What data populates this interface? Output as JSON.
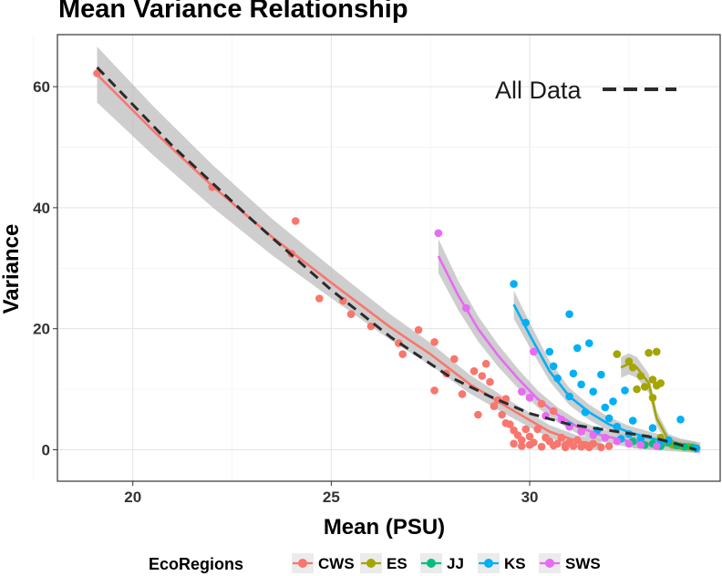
{
  "chart_data": {
    "type": "scatter",
    "title": "Mean Variance Relationship",
    "xlabel": "Mean (PSU)",
    "ylabel": "Variance",
    "xlim": [
      18.1,
      34.8
    ],
    "ylim": [
      -5.2,
      68.6
    ],
    "x_ticks": [
      20,
      25,
      30
    ],
    "y_ticks": [
      0,
      20,
      40,
      60
    ],
    "grid": true,
    "legend_title": "EcoRegions",
    "legend_position": "bottom",
    "annotation": "All Data",
    "series": [
      {
        "name": "CWS",
        "color": "#F8766D",
        "points": [
          [
            19.1,
            62.2
          ],
          [
            22.0,
            43.4
          ],
          [
            24.0,
            32.4
          ],
          [
            24.1,
            37.8
          ],
          [
            24.7,
            25.0
          ],
          [
            25.3,
            24.6
          ],
          [
            25.5,
            22.4
          ],
          [
            26.0,
            20.4
          ],
          [
            26.7,
            17.6
          ],
          [
            26.8,
            15.8
          ],
          [
            27.2,
            19.8
          ],
          [
            27.6,
            17.8
          ],
          [
            27.6,
            9.8
          ],
          [
            27.9,
            12.6
          ],
          [
            28.1,
            15.0
          ],
          [
            28.3,
            9.2
          ],
          [
            28.6,
            13.0
          ],
          [
            28.7,
            5.8
          ],
          [
            28.8,
            12.2
          ],
          [
            28.9,
            14.2
          ],
          [
            29.0,
            11.2
          ],
          [
            29.1,
            7.2
          ],
          [
            29.2,
            8.2
          ],
          [
            29.3,
            5.8
          ],
          [
            29.4,
            4.4
          ],
          [
            29.4,
            8.4
          ],
          [
            29.5,
            4.2
          ],
          [
            29.6,
            3.2
          ],
          [
            29.7,
            2.4
          ],
          [
            29.8,
            1.6
          ],
          [
            29.9,
            3.4
          ],
          [
            30.0,
            2.2
          ],
          [
            30.1,
            1.2
          ],
          [
            30.2,
            3.4
          ],
          [
            30.3,
            7.6
          ],
          [
            30.4,
            2.0
          ],
          [
            30.5,
            1.4
          ],
          [
            30.6,
            6.4
          ],
          [
            30.7,
            1.0
          ],
          [
            30.8,
            2.0
          ],
          [
            30.9,
            0.8
          ],
          [
            31.0,
            1.2
          ],
          [
            31.1,
            0.6
          ],
          [
            31.2,
            1.6
          ],
          [
            31.4,
            0.8
          ],
          [
            31.5,
            0.4
          ],
          [
            31.6,
            1.0
          ],
          [
            31.8,
            0.4
          ],
          [
            32.0,
            0.6
          ],
          [
            29.6,
            1.0
          ],
          [
            29.8,
            0.6
          ],
          [
            30.0,
            0.8
          ],
          [
            30.3,
            0.5
          ],
          [
            30.6,
            0.7
          ],
          [
            30.9,
            0.4
          ],
          [
            31.3,
            0.5
          ]
        ],
        "fit": [
          [
            19.1,
            62.0
          ],
          [
            20.5,
            52.8
          ],
          [
            22.0,
            43.6
          ],
          [
            23.5,
            35.2
          ],
          [
            25.0,
            27.6
          ],
          [
            26.5,
            20.2
          ],
          [
            27.5,
            15.8
          ],
          [
            28.5,
            10.8
          ],
          [
            29.5,
            6.8
          ],
          [
            30.5,
            3.0
          ],
          [
            31.2,
            1.4
          ],
          [
            31.8,
            0.8
          ]
        ]
      },
      {
        "name": "ES",
        "color": "#A3A500",
        "points": [
          [
            32.2,
            15.8
          ],
          [
            32.5,
            14.6
          ],
          [
            32.6,
            13.6
          ],
          [
            32.8,
            12.2
          ],
          [
            32.9,
            10.4
          ],
          [
            32.7,
            10.0
          ],
          [
            33.1,
            8.6
          ],
          [
            33.0,
            16.0
          ],
          [
            33.1,
            11.6
          ],
          [
            33.2,
            10.6
          ],
          [
            33.2,
            16.2
          ],
          [
            33.3,
            11.0
          ],
          [
            33.3,
            2.0
          ],
          [
            33.4,
            1.2
          ],
          [
            33.6,
            0.8
          ],
          [
            33.8,
            0.6
          ],
          [
            34.0,
            0.5
          ],
          [
            34.2,
            0.3
          ]
        ],
        "fit": [
          [
            32.3,
            13.6
          ],
          [
            32.5,
            14.2
          ],
          [
            32.7,
            13.6
          ],
          [
            33.0,
            11.0
          ],
          [
            33.2,
            5.2
          ],
          [
            33.5,
            1.6
          ],
          [
            33.8,
            0.9
          ],
          [
            34.2,
            0.4
          ]
        ]
      },
      {
        "name": "JJ",
        "color": "#00BF7D",
        "points": [
          [
            32.6,
            1.4
          ],
          [
            32.9,
            0.8
          ],
          [
            33.1,
            1.0
          ],
          [
            33.3,
            0.6
          ],
          [
            33.5,
            1.2
          ],
          [
            33.7,
            0.7
          ],
          [
            33.9,
            0.5
          ],
          [
            34.1,
            0.4
          ]
        ],
        "fit": [
          [
            32.6,
            1.2
          ],
          [
            33.4,
            0.8
          ],
          [
            34.2,
            0.4
          ]
        ]
      },
      {
        "name": "KS",
        "color": "#00B0F6",
        "points": [
          [
            29.6,
            27.4
          ],
          [
            29.9,
            21.0
          ],
          [
            30.5,
            16.2
          ],
          [
            30.6,
            13.8
          ],
          [
            30.7,
            11.8
          ],
          [
            31.0,
            22.4
          ],
          [
            31.0,
            8.8
          ],
          [
            31.1,
            12.6
          ],
          [
            31.2,
            16.8
          ],
          [
            31.3,
            10.8
          ],
          [
            31.4,
            6.2
          ],
          [
            31.5,
            17.6
          ],
          [
            31.6,
            9.6
          ],
          [
            31.8,
            12.4
          ],
          [
            31.9,
            7.0
          ],
          [
            32.0,
            5.2
          ],
          [
            32.1,
            8.0
          ],
          [
            32.2,
            3.8
          ],
          [
            32.4,
            9.8
          ],
          [
            32.5,
            2.6
          ],
          [
            32.6,
            4.8
          ],
          [
            32.8,
            1.8
          ],
          [
            33.1,
            3.6
          ],
          [
            33.3,
            1.2
          ],
          [
            33.5,
            1.6
          ],
          [
            33.8,
            5.0
          ],
          [
            34.2,
            0.2
          ],
          [
            31.0,
            4.0
          ],
          [
            31.7,
            3.2
          ],
          [
            32.3,
            1.8
          ]
        ],
        "fit": [
          [
            29.6,
            24.0
          ],
          [
            30.0,
            19.0
          ],
          [
            30.5,
            13.0
          ],
          [
            31.0,
            8.8
          ],
          [
            31.5,
            6.2
          ],
          [
            32.0,
            4.2
          ],
          [
            32.5,
            2.9
          ],
          [
            33.0,
            2.0
          ],
          [
            33.5,
            1.2
          ],
          [
            34.0,
            0.6
          ],
          [
            34.3,
            0.3
          ]
        ]
      },
      {
        "name": "SWS",
        "color": "#E76BF3",
        "points": [
          [
            27.7,
            35.8
          ],
          [
            28.4,
            23.4
          ],
          [
            29.8,
            9.6
          ],
          [
            30.0,
            8.6
          ],
          [
            30.1,
            16.2
          ],
          [
            30.4,
            5.6
          ],
          [
            30.8,
            5.0
          ],
          [
            31.0,
            3.8
          ],
          [
            31.3,
            3.0
          ],
          [
            31.6,
            2.4
          ],
          [
            31.9,
            2.0
          ],
          [
            32.2,
            1.4
          ],
          [
            32.5,
            1.0
          ],
          [
            32.8,
            0.8
          ],
          [
            33.2,
            0.6
          ]
        ],
        "fit": [
          [
            27.7,
            32.0
          ],
          [
            28.2,
            25.5
          ],
          [
            28.7,
            20.0
          ],
          [
            29.2,
            15.6
          ],
          [
            29.7,
            11.8
          ],
          [
            30.2,
            8.4
          ],
          [
            30.7,
            5.8
          ],
          [
            31.2,
            3.8
          ],
          [
            31.8,
            2.4
          ],
          [
            32.5,
            1.4
          ],
          [
            33.3,
            0.8
          ]
        ]
      }
    ],
    "all_data_fit": [
      [
        19.1,
        63.2
      ],
      [
        21.0,
        50.2
      ],
      [
        23.0,
        38.0
      ],
      [
        25.0,
        26.4
      ],
      [
        26.5,
        18.6
      ],
      [
        28.0,
        12.0
      ],
      [
        29.0,
        8.8
      ],
      [
        30.0,
        6.0
      ],
      [
        31.0,
        4.2
      ],
      [
        32.0,
        3.2
      ],
      [
        33.0,
        2.2
      ],
      [
        33.8,
        0.8
      ],
      [
        34.2,
        0.0
      ]
    ]
  }
}
